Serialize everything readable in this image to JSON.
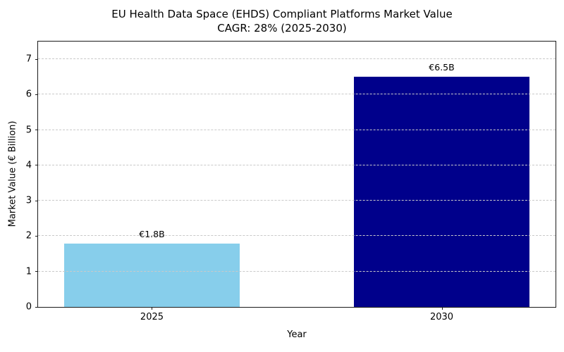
{
  "chart_data": {
    "type": "bar",
    "title": "EU Health Data Space (EHDS) Compliant Platforms Market Value",
    "subtitle": "CAGR: 28% (2025-2030)",
    "categories": [
      "2025",
      "2030"
    ],
    "values": [
      1.8,
      6.5
    ],
    "bar_labels": [
      "€1.8B",
      "€6.5B"
    ],
    "bar_colors": [
      "#87CEEB",
      "#00008B"
    ],
    "xlabel": "Year",
    "ylabel": "Market Value (€ Billion)",
    "ylim": [
      0,
      7.5
    ],
    "yticks": [
      0,
      1,
      2,
      3,
      4,
      5,
      6,
      7
    ],
    "grid": "horizontal-dashed",
    "grid_color": "#c9c9c9",
    "legend": "none",
    "spines": "full-box"
  }
}
